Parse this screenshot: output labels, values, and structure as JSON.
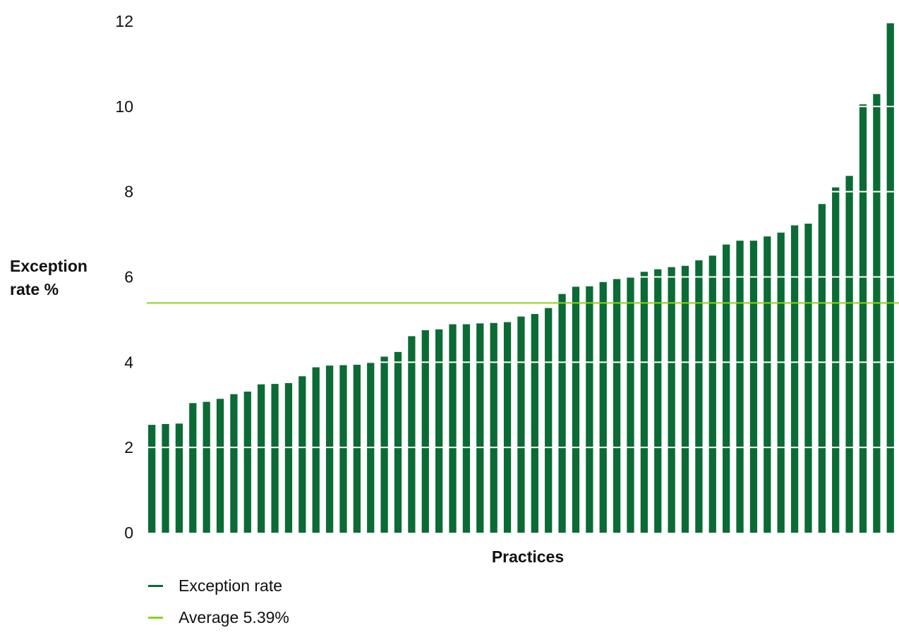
{
  "chart_data": {
    "type": "bar",
    "title": "",
    "xlabel": "Practices",
    "ylabel": [
      "Exception",
      "rate %"
    ],
    "ylim": [
      0,
      12
    ],
    "yticks": [
      0,
      2,
      4,
      6,
      8,
      10,
      12
    ],
    "grid": "horizontal, white over bars",
    "legend_position": "bottom-left",
    "series": [
      {
        "name": "Exception rate",
        "color": "#0b6b35",
        "values": [
          2.53,
          2.55,
          2.56,
          3.04,
          3.07,
          3.14,
          3.25,
          3.31,
          3.48,
          3.49,
          3.51,
          3.67,
          3.88,
          3.92,
          3.93,
          3.94,
          4.0,
          4.13,
          4.24,
          4.61,
          4.75,
          4.77,
          4.89,
          4.89,
          4.91,
          4.92,
          4.94,
          5.07,
          5.13,
          5.27,
          5.6,
          5.77,
          5.78,
          5.88,
          5.95,
          5.99,
          6.12,
          6.18,
          6.23,
          6.26,
          6.39,
          6.5,
          6.76,
          6.85,
          6.85,
          6.95,
          7.04,
          7.21,
          7.25,
          7.71,
          8.1,
          8.37,
          10.05,
          10.29,
          11.95
        ]
      }
    ],
    "average": {
      "name": "Average 5.39%",
      "value": 5.39,
      "color": "#8fd11a"
    }
  }
}
